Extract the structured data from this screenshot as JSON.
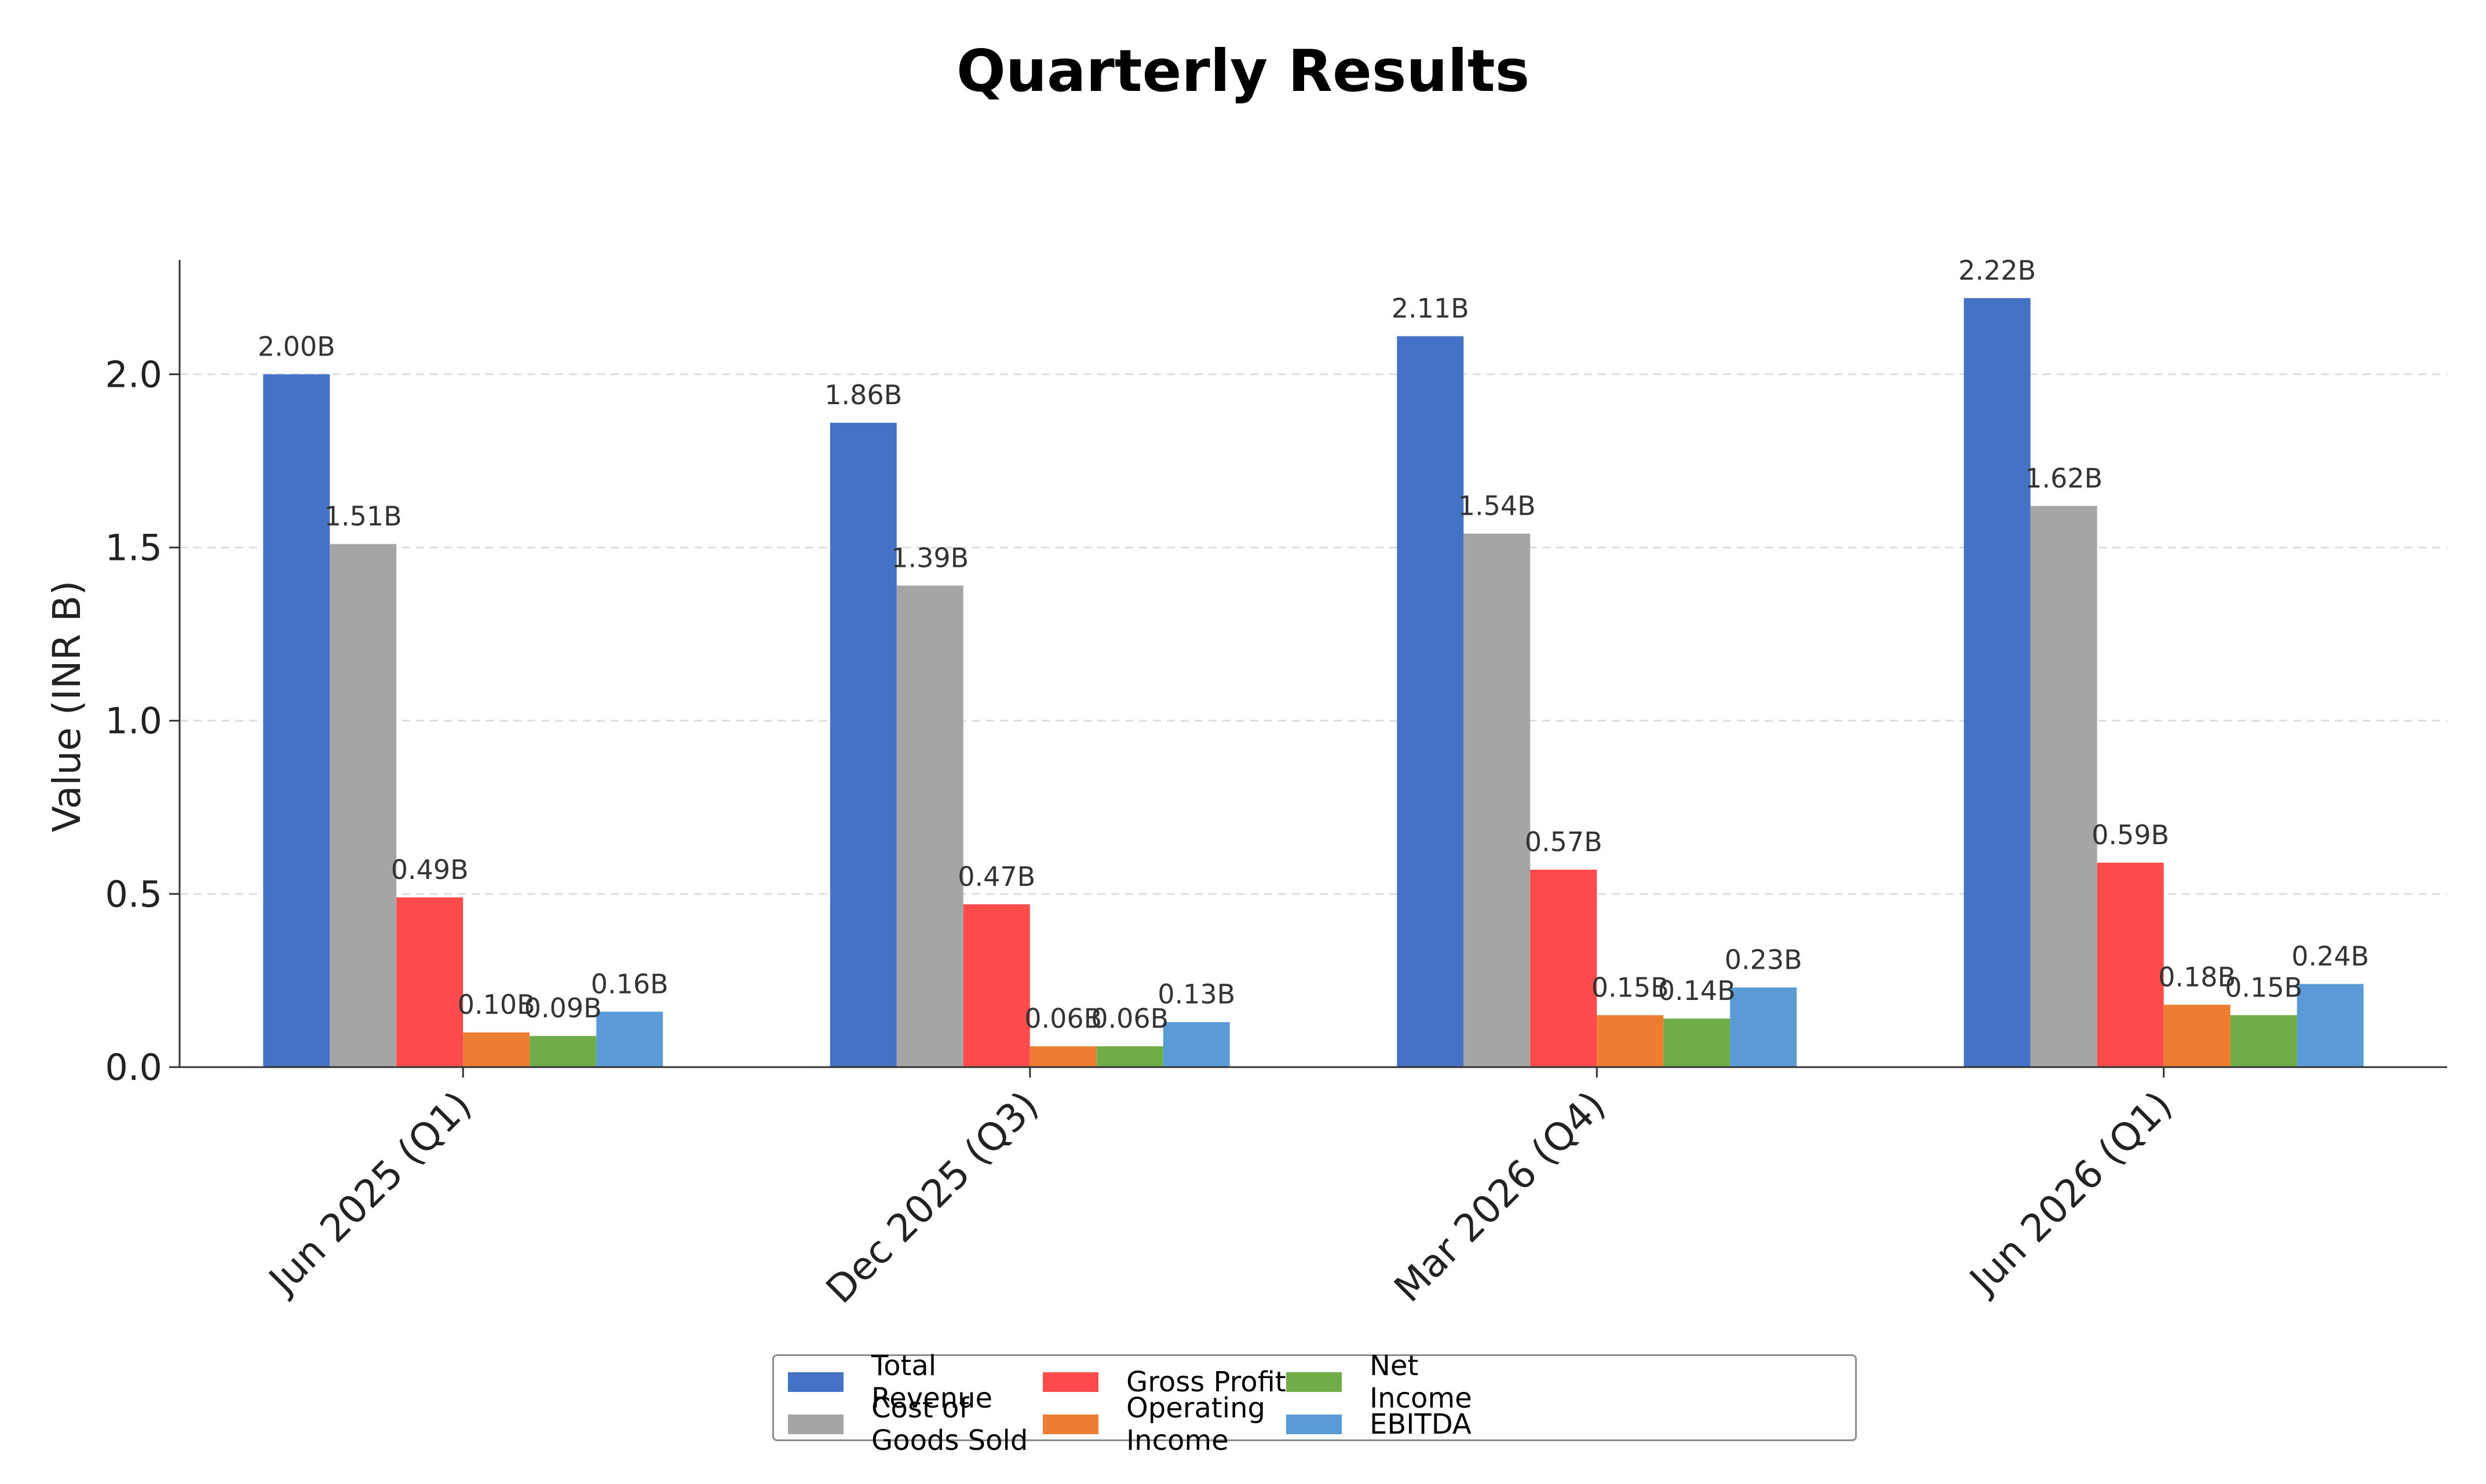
{
  "chart_data": {
    "type": "bar",
    "title": "Quarterly Results",
    "ylabel": "Value (INR B)",
    "xlabel": "",
    "ylim": [
      0,
      2.33
    ],
    "yticks": [
      "0.0",
      "0.5",
      "1.0",
      "1.5",
      "2.0"
    ],
    "grid": "y-dashed",
    "legend_position": "bottom-center",
    "categories": [
      "Jun 2025 (Q1)",
      "Dec 2025 (Q3)",
      "Mar 2026 (Q4)",
      "Jun 2026 (Q1)"
    ],
    "series": [
      {
        "name": "Total Revenue",
        "color": "#4472c4",
        "values": [
          2.0,
          1.86,
          2.11,
          2.22
        ],
        "labels": [
          "2.00B",
          "1.86B",
          "2.11B",
          "2.22B"
        ]
      },
      {
        "name": "Cost of Goods Sold",
        "color": "#a5a5a5",
        "values": [
          1.51,
          1.39,
          1.54,
          1.62
        ],
        "labels": [
          "1.51B",
          "1.39B",
          "1.54B",
          "1.62B"
        ]
      },
      {
        "name": "Gross Profit",
        "color": "#ff4b4b",
        "values": [
          0.49,
          0.47,
          0.57,
          0.59
        ],
        "labels": [
          "0.49B",
          "0.47B",
          "0.57B",
          "0.59B"
        ]
      },
      {
        "name": "Operating Income",
        "color": "#ed7d31",
        "values": [
          0.1,
          0.06,
          0.15,
          0.18
        ],
        "labels": [
          "0.10B",
          "0.06B",
          "0.15B",
          "0.18B"
        ]
      },
      {
        "name": "Net Income",
        "color": "#70ad47",
        "values": [
          0.09,
          0.06,
          0.14,
          0.15
        ],
        "labels": [
          "0.09B",
          "0.06B",
          "0.14B",
          "0.15B"
        ]
      },
      {
        "name": "EBITDA",
        "color": "#5b9bd5",
        "values": [
          0.16,
          0.13,
          0.23,
          0.24
        ],
        "labels": [
          "0.16B",
          "0.13B",
          "0.23B",
          "0.24B"
        ]
      }
    ]
  }
}
